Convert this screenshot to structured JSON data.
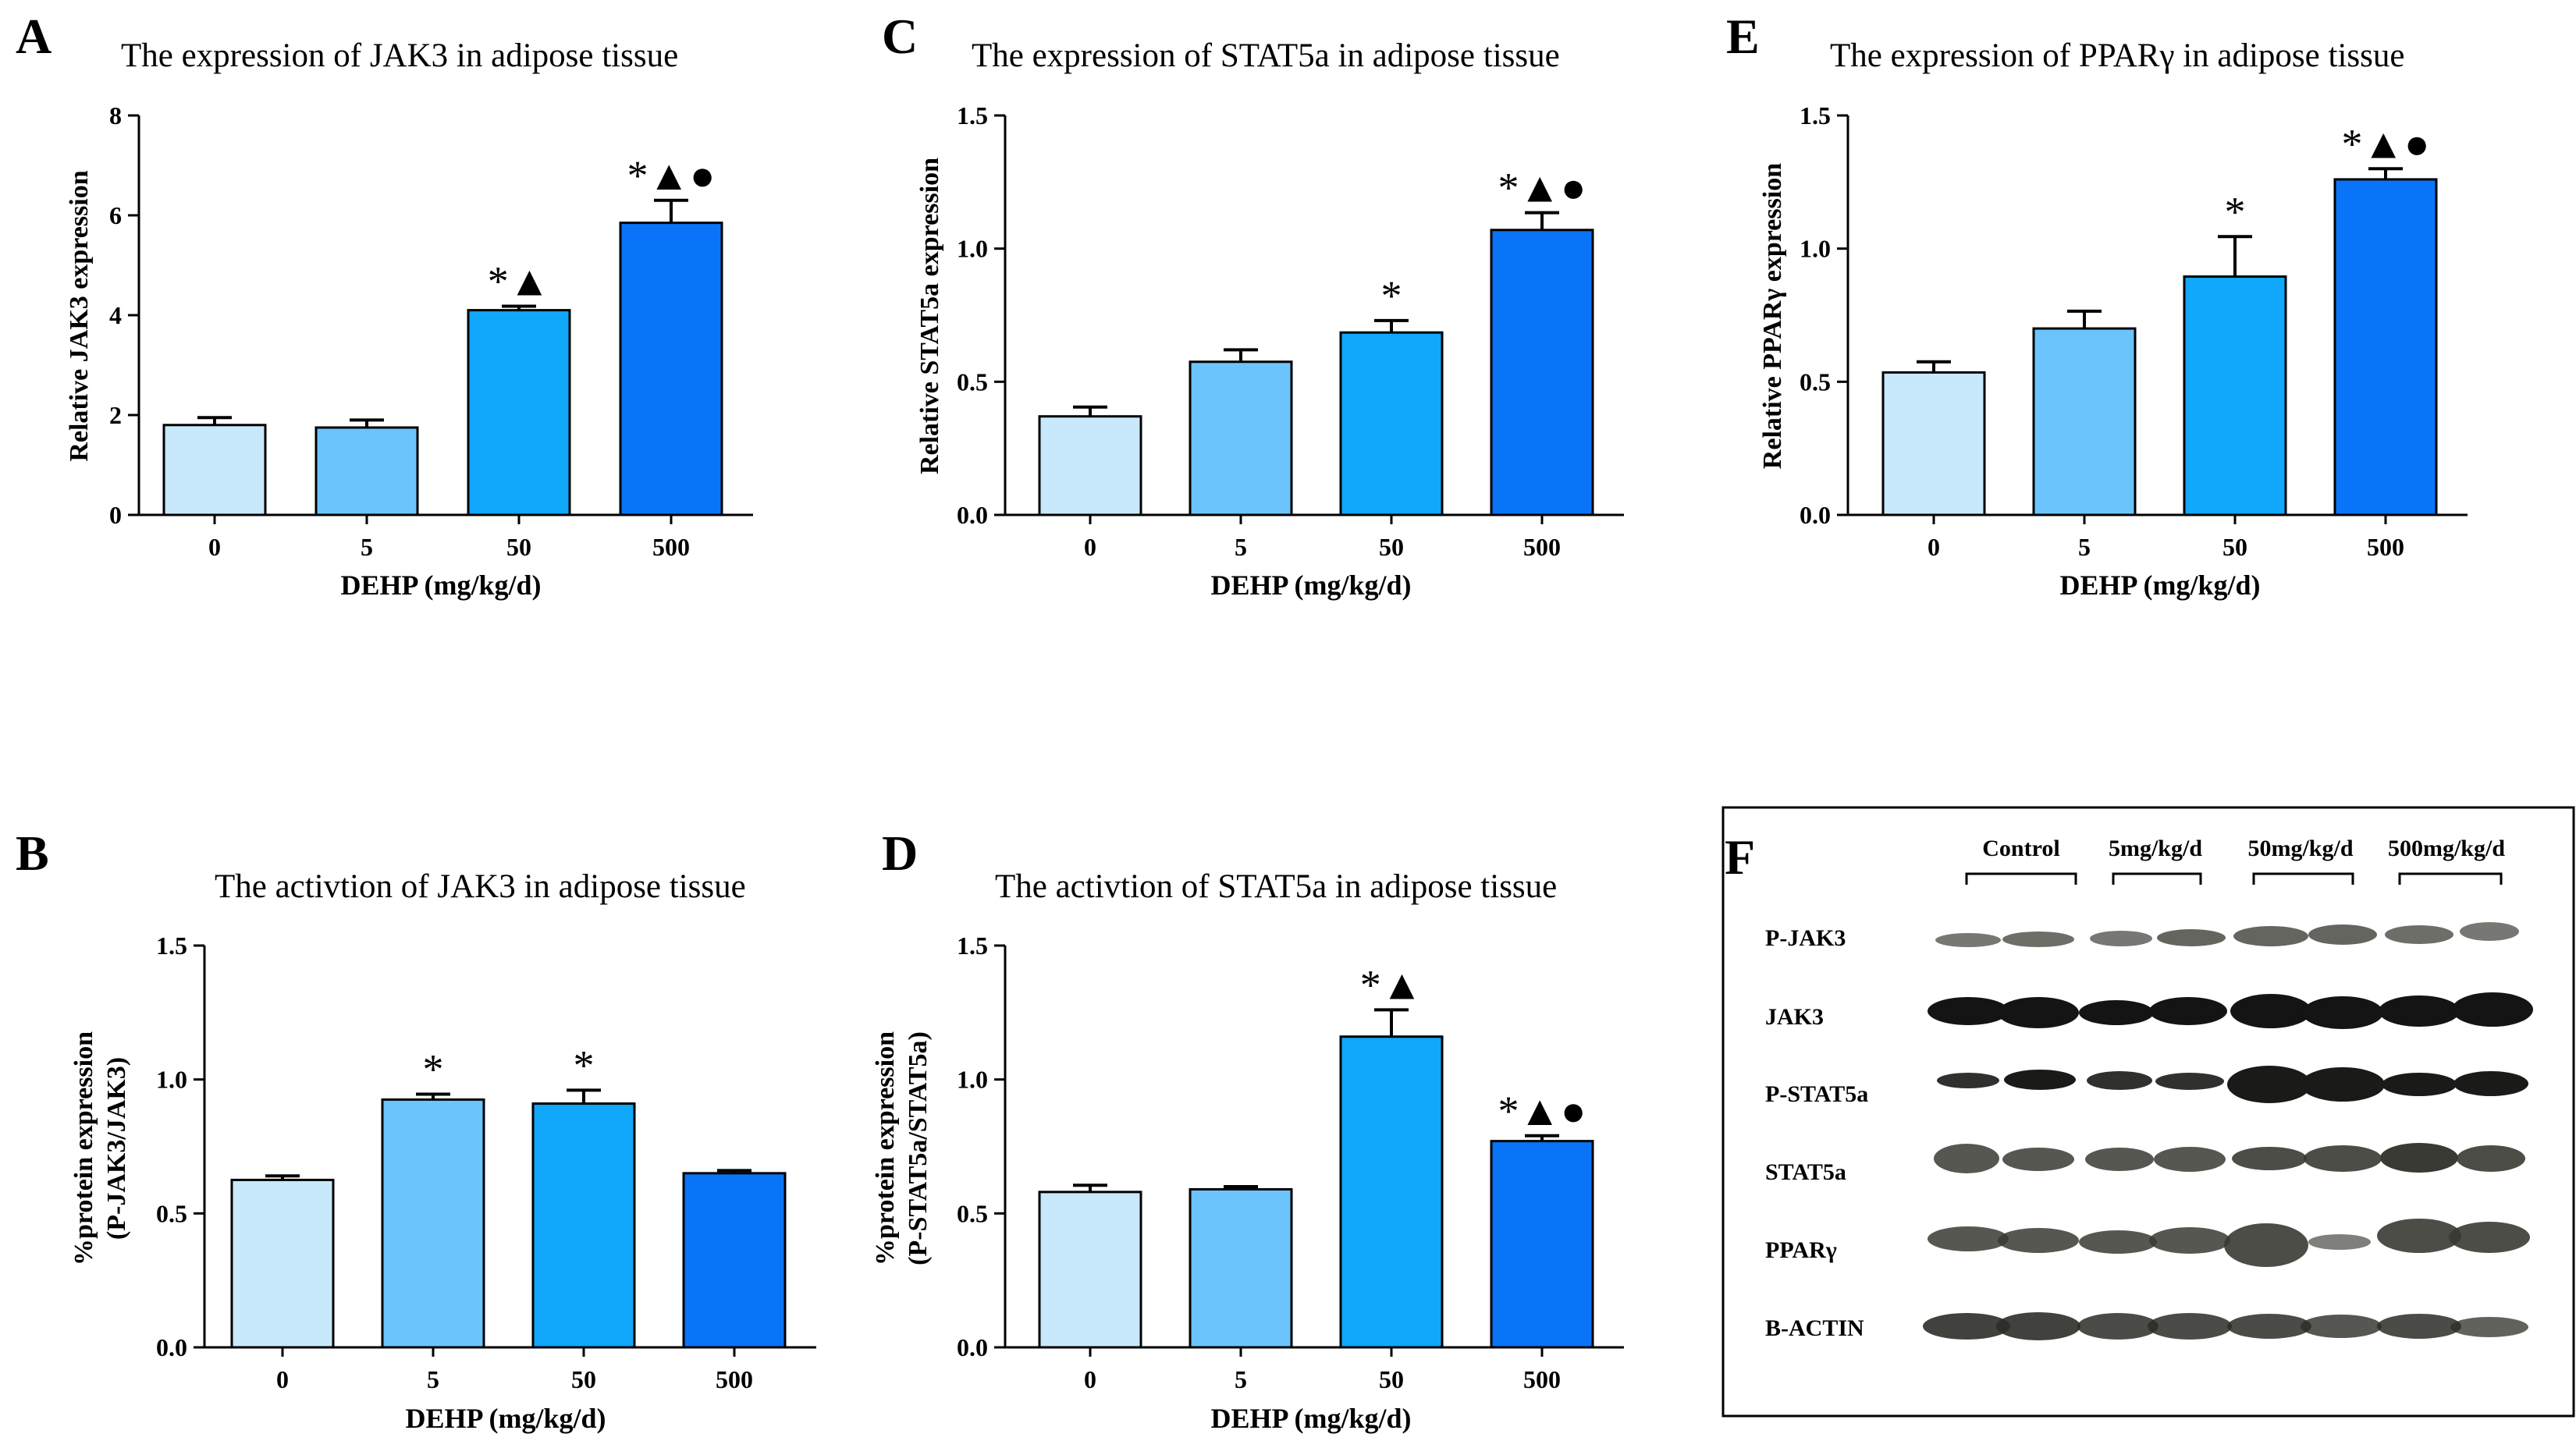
{
  "figure": {
    "panels": [
      {
        "letter": "A",
        "title": "The expression of JAK3  in  adipose tissue",
        "ylabel": "Relative  JAK3 expression"
      },
      {
        "letter": "C",
        "title": "The expression of STAT5a  in  adipose tissue",
        "ylabel": "Relative  STAT5a expression"
      },
      {
        "letter": "E",
        "title": "The expression of PPARγ  in  adipose tissue",
        "ylabel": "Relative PPARγ  expression"
      },
      {
        "letter": "B",
        "title": "The activtion of JAK3 in adipose tissue",
        "ylabel_line1": "%protein expression",
        "ylabel_line2": "(P-JAK3/JAK3)"
      },
      {
        "letter": "D",
        "title": "The activtion of STAT5a in adipose tissue",
        "ylabel_line1": "%protein expression",
        "ylabel_line2": "(P-STAT5a/STAT5a)"
      },
      {
        "letter": "F"
      }
    ],
    "xlabel": "DEHP  (mg/kg/d)",
    "bar_colors": [
      "#c8e8fc",
      "#6cc4fd",
      "#11a7fb",
      "#0974f8"
    ],
    "western_blot": {
      "groups": [
        "Control",
        "5mg/kg/d",
        "50mg/kg/d",
        "500mg/kg/d"
      ],
      "rows": [
        "P-JAK3",
        "JAK3",
        "P-STAT5a",
        "STAT5a",
        "PPARγ",
        "B-ACTIN"
      ]
    }
  },
  "chart_data": [
    {
      "type": "bar",
      "panel": "A",
      "title": "The expression of JAK3  in  adipose tissue",
      "xlabel": "DEHP  (mg/kg/d)",
      "ylabel": "Relative  JAK3 expression",
      "categories": [
        "0",
        "5",
        "50",
        "500"
      ],
      "values": [
        1.8,
        1.75,
        4.1,
        5.85
      ],
      "errors": [
        0.15,
        0.15,
        0.08,
        0.45
      ],
      "annotations": [
        "",
        "",
        "*▲",
        "*▲●"
      ],
      "ylim": [
        0,
        8
      ],
      "yticks": [
        "0",
        "2",
        "4",
        "6",
        "8"
      ],
      "ytick_values": [
        0,
        2,
        4,
        6,
        8
      ]
    },
    {
      "type": "bar",
      "panel": "C",
      "title": "The expression of STAT5a  in  adipose tissue",
      "xlabel": "DEHP  (mg/kg/d)",
      "ylabel": "Relative  STAT5a expression",
      "categories": [
        "0",
        "5",
        "50",
        "500"
      ],
      "values": [
        0.37,
        0.575,
        0.685,
        1.07
      ],
      "errors": [
        0.035,
        0.045,
        0.045,
        0.065
      ],
      "annotations": [
        "",
        "",
        "*",
        "*▲●"
      ],
      "ylim": [
        0,
        1.5
      ],
      "yticks": [
        "0.0",
        "0.5",
        "1.0",
        "1.5"
      ],
      "ytick_values": [
        0,
        0.5,
        1.0,
        1.5
      ]
    },
    {
      "type": "bar",
      "panel": "E",
      "title": "The expression of PPARγ  in  adipose tissue",
      "xlabel": "DEHP  (mg/kg/d)",
      "ylabel": "Relative PPARγ  expression",
      "categories": [
        "0",
        "5",
        "50",
        "500"
      ],
      "values": [
        0.535,
        0.7,
        0.895,
        1.26
      ],
      "errors": [
        0.04,
        0.065,
        0.15,
        0.04
      ],
      "annotations": [
        "",
        "",
        "*",
        "*▲●"
      ],
      "ylim": [
        0,
        1.5
      ],
      "yticks": [
        "0.0",
        "0.5",
        "1.0",
        "1.5"
      ],
      "ytick_values": [
        0,
        0.5,
        1.0,
        1.5
      ]
    },
    {
      "type": "bar",
      "panel": "B",
      "title": "The activtion of JAK3 in adipose tissue",
      "xlabel": "DEHP  (mg/kg/d)",
      "ylabel": "%protein expression (P-JAK3/JAK3)",
      "categories": [
        "0",
        "5",
        "50",
        "500"
      ],
      "values": [
        0.625,
        0.925,
        0.91,
        0.65
      ],
      "errors": [
        0.015,
        0.02,
        0.05,
        0.01
      ],
      "annotations": [
        "",
        "*",
        "*",
        ""
      ],
      "ylim": [
        0,
        1.5
      ],
      "yticks": [
        "0.0",
        "0.5",
        "1.0",
        "1.5"
      ],
      "ytick_values": [
        0,
        0.5,
        1.0,
        1.5
      ]
    },
    {
      "type": "bar",
      "panel": "D",
      "title": "The activtion of STAT5a in adipose tissue",
      "xlabel": "DEHP  (mg/kg/d)",
      "ylabel": "%protein expression (P-STAT5a/STAT5a)",
      "categories": [
        "0",
        "5",
        "50",
        "500"
      ],
      "values": [
        0.58,
        0.59,
        1.16,
        0.77
      ],
      "errors": [
        0.025,
        0.01,
        0.1,
        0.02
      ],
      "annotations": [
        "",
        "",
        "*▲",
        "*▲●"
      ],
      "ylim": [
        0,
        1.5
      ],
      "yticks": [
        "0.0",
        "0.5",
        "1.0",
        "1.5"
      ],
      "ytick_values": [
        0,
        0.5,
        1.0,
        1.5
      ]
    }
  ]
}
